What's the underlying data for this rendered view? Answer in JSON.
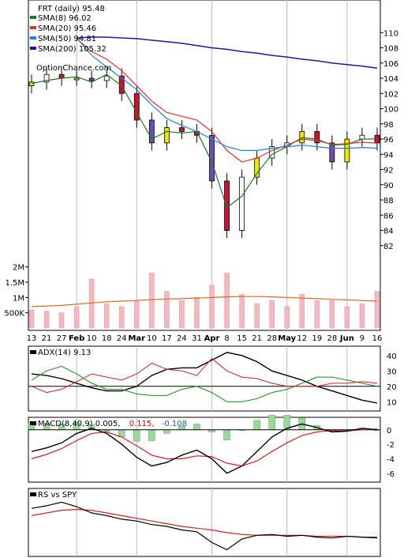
{
  "symbol_label": "FRT (daily) 95.48",
  "source_label": "OptionChance.com",
  "colors": {
    "price_up": "#ffffff",
    "price_down": "#cc1133",
    "price_alt_up": "#e8e800",
    "price_alt_down": "#6a4fb0",
    "sma8": "#1a7a1a",
    "sma20": "#e03030",
    "sma50": "#2080e0",
    "sma200": "#1a1aa0",
    "bollinger": "#2a8ad0",
    "bollinger_yellow": "#e0d800",
    "volume": "#f4b8c0",
    "volume_ma": "#e06a1a",
    "adx": "#000000",
    "plus_di": "#1a8a1a",
    "minus_di": "#d02020",
    "macd_hist_pos": "#9ad89a",
    "macd_hist_neg": "#9ad89a",
    "macd_line": "#000000",
    "macd_signal": "#d02020",
    "rs_line": "#000000",
    "rs_ma": "#d02020",
    "macd_value1": "#d00000",
    "macd_value2": "#2050c0"
  },
  "legend": [
    {
      "label": "SMA(8) 96.02",
      "color_key": "sma8"
    },
    {
      "label": "SMA(20) 95.46",
      "color_key": "sma20"
    },
    {
      "label": "SMA(50) 94.81",
      "color_key": "sma50"
    },
    {
      "label": "SMA(200) 105.32",
      "color_key": "sma200"
    }
  ],
  "price_axis_ticks": [
    "110",
    "108",
    "106",
    "104",
    "102",
    "100",
    "98",
    "96",
    "94",
    "92",
    "90",
    "88",
    "86",
    "84",
    "82"
  ],
  "volume_axis_ticks": [
    "2M",
    "1.5M",
    "1M",
    "500K"
  ],
  "date_labels": [
    "13",
    "21",
    "27",
    "Feb",
    "10",
    "18",
    "24",
    "Mar",
    "10",
    "17",
    "24",
    "31",
    "Apr",
    "8",
    "15",
    "21",
    "28",
    "May",
    "12",
    "19",
    "28",
    "Jun",
    "9",
    "16"
  ],
  "adx_panel": {
    "label": "ADX(14) 9.13",
    "ticks": [
      "40",
      "30",
      "20",
      "10"
    ]
  },
  "macd_panel": {
    "label": "MACD(8,40,9) 0.005,",
    "value1": "0.115,",
    "value2": "-0.108",
    "ticks": [
      "0",
      "-2",
      "-4",
      "-6"
    ]
  },
  "rs_panel": {
    "label": "RS vs SPY"
  },
  "chart_data": [
    {
      "type": "candlestick",
      "title": "FRT (daily) 95.48",
      "x": [
        "Jan 13",
        "Jan 21",
        "Jan 27",
        "Feb 3",
        "Feb 10",
        "Feb 18",
        "Feb 24",
        "Mar 3",
        "Mar 10",
        "Mar 17",
        "Mar 24",
        "Mar 31",
        "Apr 1",
        "Apr 8",
        "Apr 15",
        "Apr 21",
        "Apr 28",
        "May 5",
        "May 12",
        "May 19",
        "May 28",
        "Jun 2",
        "Jun 9",
        "Jun 16"
      ],
      "close": [
        103.5,
        104.5,
        104.0,
        104.0,
        103.7,
        104.3,
        102.0,
        98.5,
        95.5,
        97.5,
        97.0,
        96.5,
        90.5,
        84.0,
        91.0,
        93.5,
        95.0,
        95.5,
        97.0,
        95.5,
        93.0,
        96.0,
        96.5,
        95.5
      ],
      "series": [
        {
          "name": "SMA(8)",
          "values": [
            103.3,
            103.7,
            104.0,
            104.2,
            103.5,
            104.5,
            103.0,
            99.5,
            96.0,
            97.0,
            96.8,
            97.0,
            93.0,
            87.0,
            88.5,
            91.5,
            94.0,
            95.0,
            96.2,
            96.0,
            95.2,
            95.3,
            96.0,
            96.02
          ]
        },
        {
          "name": "SMA(20)",
          "values": [
            null,
            null,
            null,
            109.2,
            107.5,
            106.5,
            105.0,
            103.0,
            101.0,
            99.5,
            99.0,
            98.5,
            97.0,
            94.5,
            93.0,
            93.5,
            94.5,
            95.2,
            96.0,
            95.8,
            95.3,
            95.4,
            95.6,
            95.46
          ]
        },
        {
          "name": "SMA(50)",
          "values": [
            null,
            null,
            null,
            109.3,
            107.0,
            105.5,
            104.0,
            102.5,
            100.5,
            98.7,
            97.8,
            97.0,
            96.0,
            95.0,
            94.5,
            94.5,
            94.8,
            95.0,
            95.2,
            95.0,
            94.8,
            94.8,
            94.9,
            94.81
          ]
        },
        {
          "name": "SMA(200)",
          "values": [
            null,
            null,
            null,
            109.3,
            109.4,
            109.4,
            109.3,
            109.2,
            109.0,
            108.8,
            108.6,
            108.3,
            108.0,
            107.8,
            107.5,
            107.3,
            107.0,
            106.8,
            106.5,
            106.3,
            106.0,
            105.8,
            105.6,
            105.32
          ]
        }
      ],
      "ylim": [
        80,
        112
      ]
    },
    {
      "type": "bar",
      "title": "Volume",
      "x": [
        "Jan 13",
        "Jan 21",
        "Jan 27",
        "Feb 3",
        "Feb 10",
        "Feb 18",
        "Feb 24",
        "Mar 3",
        "Mar 10",
        "Mar 17",
        "Mar 24",
        "Mar 31",
        "Apr 1",
        "Apr 8",
        "Apr 15",
        "Apr 21",
        "Apr 28",
        "May 5",
        "May 12",
        "May 19",
        "May 28",
        "Jun 2",
        "Jun 9",
        "Jun 16"
      ],
      "values": [
        600000,
        550000,
        500000,
        700000,
        1600000,
        800000,
        700000,
        900000,
        1800000,
        1200000,
        900000,
        1000000,
        1400000,
        1800000,
        1100000,
        800000,
        900000,
        700000,
        1100000,
        900000,
        900000,
        700000,
        800000,
        1200000
      ],
      "series": [
        {
          "name": "Volume MA",
          "values": [
            700000,
            720000,
            740000,
            780000,
            820000,
            860000,
            880000,
            900000,
            930000,
            950000,
            960000,
            980000,
            1000000,
            1020000,
            1030000,
            1030000,
            1020000,
            1000000,
            980000,
            960000,
            940000,
            920000,
            900000,
            880000
          ]
        }
      ],
      "ylim": [
        0,
        2200000
      ]
    },
    {
      "type": "line",
      "title": "ADX(14) 9.13",
      "x": [
        "Jan 13",
        "Jan 21",
        "Jan 27",
        "Feb 3",
        "Feb 10",
        "Feb 18",
        "Feb 24",
        "Mar 3",
        "Mar 10",
        "Mar 17",
        "Mar 24",
        "Mar 31",
        "Apr 1",
        "Apr 8",
        "Apr 15",
        "Apr 21",
        "Apr 28",
        "May 5",
        "May 12",
        "May 19",
        "May 28",
        "Jun 2",
        "Jun 9",
        "Jun 16"
      ],
      "series": [
        {
          "name": "ADX",
          "values": [
            28,
            27,
            25,
            22,
            19,
            17,
            17,
            20,
            27,
            31,
            32,
            32,
            37,
            42,
            40,
            36,
            30,
            27,
            24,
            20,
            17,
            14,
            11,
            9.13
          ]
        },
        {
          "name": "+DI",
          "values": [
            24,
            30,
            33,
            28,
            22,
            18,
            18,
            15,
            14,
            14,
            18,
            20,
            16,
            10,
            10,
            12,
            16,
            18,
            22,
            26,
            26,
            24,
            22,
            20
          ]
        },
        {
          "name": "-DI",
          "values": [
            20,
            16,
            18,
            23,
            28,
            26,
            24,
            28,
            35,
            31,
            30,
            27,
            38,
            30,
            26,
            25,
            22,
            20,
            20,
            20,
            22,
            22,
            23,
            22
          ]
        }
      ],
      "ylim": [
        5,
        45
      ]
    },
    {
      "type": "line",
      "title": "MACD(8,40,9)",
      "x": [
        "Jan 13",
        "Jan 21",
        "Jan 27",
        "Feb 3",
        "Feb 10",
        "Feb 18",
        "Feb 24",
        "Mar 3",
        "Mar 10",
        "Mar 17",
        "Mar 24",
        "Mar 31",
        "Apr 1",
        "Apr 8",
        "Apr 15",
        "Apr 21",
        "Apr 28",
        "May 5",
        "May 12",
        "May 19",
        "May 28",
        "Jun 2",
        "Jun 9",
        "Jun 16"
      ],
      "series": [
        {
          "name": "MACD",
          "values": [
            -3.0,
            -2.5,
            -1.8,
            -0.5,
            0.2,
            -0.5,
            -2.0,
            -3.8,
            -5.0,
            -4.5,
            -3.5,
            -2.8,
            -4.0,
            -6.0,
            -5.0,
            -3.0,
            -1.0,
            0.2,
            0.8,
            0.3,
            -0.3,
            -0.2,
            0.2,
            0.005
          ]
        },
        {
          "name": "Signal",
          "values": [
            -4.0,
            -3.4,
            -2.6,
            -1.5,
            -0.5,
            -0.3,
            -1.0,
            -2.2,
            -3.5,
            -4.0,
            -4.0,
            -3.6,
            -3.7,
            -4.6,
            -5.0,
            -4.3,
            -3.0,
            -1.8,
            -0.8,
            -0.3,
            -0.1,
            -0.15,
            0.0,
            0.1
          ]
        },
        {
          "name": "Histogram",
          "values": [
            1.0,
            0.9,
            0.8,
            1.0,
            0.7,
            -0.2,
            -1.0,
            -1.6,
            -1.5,
            -0.5,
            0.5,
            0.8,
            -0.3,
            -1.4,
            0.0,
            1.3,
            2.0,
            2.0,
            1.6,
            0.6,
            -0.2,
            0.0,
            0.2,
            -0.1
          ]
        }
      ],
      "ylim": [
        -7,
        1.5
      ]
    },
    {
      "type": "line",
      "title": "RS vs SPY",
      "x": [
        "Jan 13",
        "Jan 21",
        "Jan 27",
        "Feb 3",
        "Feb 10",
        "Feb 18",
        "Feb 24",
        "Mar 3",
        "Mar 10",
        "Mar 17",
        "Mar 24",
        "Mar 31",
        "Apr 1",
        "Apr 8",
        "Apr 15",
        "Apr 21",
        "Apr 28",
        "May 5",
        "May 12",
        "May 19",
        "May 28",
        "Jun 2",
        "Jun 9",
        "Jun 16"
      ],
      "series": [
        {
          "name": "RS",
          "values": [
            1.1,
            1.13,
            1.17,
            1.12,
            1.05,
            1.02,
            0.98,
            0.96,
            0.92,
            0.9,
            0.86,
            0.84,
            0.72,
            0.64,
            0.76,
            0.8,
            0.81,
            0.79,
            0.8,
            0.78,
            0.77,
            0.79,
            0.78,
            0.77
          ]
        },
        {
          "name": "RS MA",
          "values": [
            1.02,
            1.05,
            1.08,
            1.09,
            1.08,
            1.05,
            1.02,
            0.99,
            0.96,
            0.93,
            0.9,
            0.88,
            0.86,
            0.83,
            0.81,
            0.8,
            0.8,
            0.8,
            0.8,
            0.79,
            0.79,
            0.79,
            0.78,
            0.78
          ]
        }
      ],
      "ylim": [
        0.6,
        1.2
      ]
    }
  ]
}
